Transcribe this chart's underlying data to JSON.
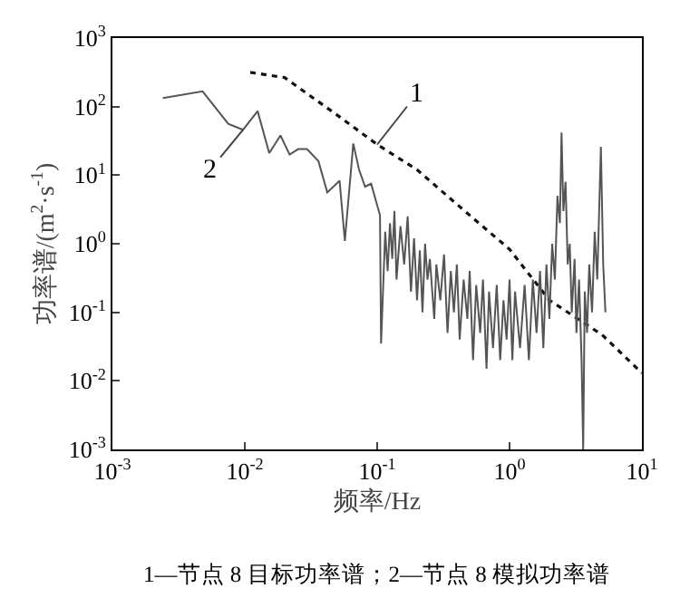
{
  "chart_data": {
    "type": "line",
    "xlabel": "频率/Hz",
    "ylabel": "功率谱/(m$^{2}$·s$^{-1}$)",
    "log": "xy",
    "grid": false,
    "marker": "none",
    "xlim": [
      0.001,
      10
    ],
    "ylim": [
      0.001,
      1000
    ],
    "xticks": [
      {
        "value": 0.001,
        "label": "10$^{-3}$"
      },
      {
        "value": 0.01,
        "label": "10$^{-2}$"
      },
      {
        "value": 0.1,
        "label": "10$^{-1}$"
      },
      {
        "value": 1,
        "label": "10$^{0}$"
      },
      {
        "value": 10,
        "label": "10$^{1}$"
      }
    ],
    "yticks": [
      {
        "value": 0.001,
        "label": "10$^{-3}$"
      },
      {
        "value": 0.01,
        "label": "10$^{-2}$"
      },
      {
        "value": 0.1,
        "label": "10$^{-1}$"
      },
      {
        "value": 1,
        "label": "10$^{0}$"
      },
      {
        "value": 10,
        "label": "10$^{1}$"
      },
      {
        "value": 100,
        "label": "10$^{2}$"
      },
      {
        "value": 1000,
        "label": "10$^{3}$"
      }
    ],
    "series": [
      {
        "color": "#111111",
        "line_style": "dotted",
        "x": [
          0.011,
          0.02,
          0.05,
          0.1,
          0.2,
          0.5,
          1,
          2,
          5,
          10
        ],
        "values": [
          316,
          265,
          75,
          28,
          12,
          2.6,
          0.83,
          0.15,
          0.047,
          0.013
        ]
      },
      {
        "color": "#555555",
        "line_style": "solid",
        "x": [
          0.0024,
          0.0048,
          0.0075,
          0.0097,
          0.0125,
          0.0153,
          0.0186,
          0.0218,
          0.0253,
          0.0295,
          0.036,
          0.042,
          0.052,
          0.057,
          0.066,
          0.073,
          0.081,
          0.09,
          0.105,
          0.107,
          0.115,
          0.12,
          0.125,
          0.13,
          0.135,
          0.14,
          0.15,
          0.16,
          0.17,
          0.18,
          0.19,
          0.2,
          0.21,
          0.22,
          0.23,
          0.24,
          0.25,
          0.27,
          0.28,
          0.3,
          0.32,
          0.34,
          0.36,
          0.38,
          0.4,
          0.42,
          0.45,
          0.48,
          0.5,
          0.53,
          0.56,
          0.6,
          0.63,
          0.67,
          0.7,
          0.75,
          0.8,
          0.85,
          0.9,
          0.95,
          1.0,
          1.05,
          1.1,
          1.2,
          1.3,
          1.4,
          1.5,
          1.6,
          1.7,
          1.8,
          1.9,
          2.0,
          2.1,
          2.2,
          2.3,
          2.4,
          2.47,
          2.55,
          2.65,
          2.75,
          2.85,
          2.95,
          3.1,
          3.2,
          3.35,
          3.5,
          3.6,
          3.7,
          3.85,
          4.0,
          4.2,
          4.4,
          4.6,
          4.9,
          5.1,
          5.3
        ],
        "values": [
          133,
          167,
          56,
          46,
          86,
          21,
          38,
          20,
          24,
          24,
          16,
          5.6,
          8.3,
          1.1,
          29,
          12,
          6.8,
          7.5,
          2.6,
          0.035,
          1.5,
          0.4,
          2.0,
          0.6,
          3.0,
          0.3,
          1.8,
          0.5,
          2.5,
          0.2,
          1.2,
          0.15,
          0.8,
          0.1,
          1.0,
          0.3,
          0.6,
          0.08,
          0.5,
          0.15,
          0.7,
          0.05,
          0.4,
          0.1,
          0.5,
          0.04,
          0.3,
          0.08,
          0.4,
          0.02,
          0.25,
          0.05,
          0.3,
          0.015,
          0.2,
          0.03,
          0.25,
          0.02,
          0.15,
          0.04,
          0.3,
          0.02,
          0.2,
          0.03,
          0.25,
          0.02,
          0.3,
          0.05,
          0.4,
          0.03,
          0.5,
          0.08,
          1.0,
          0.3,
          5,
          2,
          42,
          3,
          8,
          0.5,
          1,
          0.1,
          0.6,
          0.05,
          0.3,
          0.02,
          0.001,
          0.2,
          0.05,
          0.5,
          0.1,
          1.5,
          0.3,
          26,
          0.5,
          0.1
        ]
      }
    ],
    "annotations": [
      {
        "text": "1",
        "x": 0.1,
        "y": 28
      },
      {
        "text": "2",
        "x": 0.0097,
        "y": 46
      },
      "1—节点 8 目标功率谱；2—节点 8 模拟功率谱"
    ]
  }
}
